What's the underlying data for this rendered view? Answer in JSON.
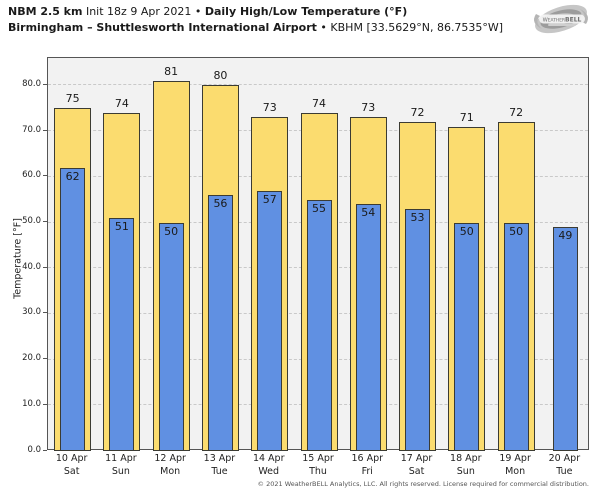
{
  "header": {
    "title_model": "NBM 2.5 km",
    "title_init": "Init 18z 9 Apr 2021",
    "title_sep": "•",
    "title_main": "Daily High/Low Temperature (°F)",
    "subtitle_station": "Birmingham – Shuttlesworth International Airport",
    "subtitle_sep": "•",
    "subtitle_meta": "KBHM [33.5629°N, 86.7535°W]",
    "logo_text_left": "Weather",
    "logo_text_right": "BELL"
  },
  "chart_data": {
    "type": "bar",
    "title": "NBM 2.5 km Init 18z 9 Apr 2021 • Daily High/Low Temperature (°F)",
    "subtitle": "Birmingham – Shuttlesworth International Airport • KBHM [33.5629°N, 86.7535°W]",
    "xlabel": "",
    "ylabel": "Temperature [°F]",
    "ylim": [
      0,
      86
    ],
    "yticks": [
      0,
      10,
      20,
      30,
      40,
      50,
      60,
      70,
      80
    ],
    "ytick_labels": [
      "0.0",
      "10.0",
      "20.0",
      "30.0",
      "40.0",
      "50.0",
      "60.0",
      "70.0",
      "80.0"
    ],
    "grid": "horizontal-dashed",
    "legend_position": "none",
    "categories": [
      {
        "date": "10 Apr",
        "day": "Sat"
      },
      {
        "date": "11 Apr",
        "day": "Sun"
      },
      {
        "date": "12 Apr",
        "day": "Mon"
      },
      {
        "date": "13 Apr",
        "day": "Tue"
      },
      {
        "date": "14 Apr",
        "day": "Wed"
      },
      {
        "date": "15 Apr",
        "day": "Thu"
      },
      {
        "date": "16 Apr",
        "day": "Fri"
      },
      {
        "date": "17 Apr",
        "day": "Sat"
      },
      {
        "date": "18 Apr",
        "day": "Sun"
      },
      {
        "date": "19 Apr",
        "day": "Mon"
      },
      {
        "date": "20 Apr",
        "day": "Tue"
      }
    ],
    "series": [
      {
        "name": "Daily High",
        "color": "#fbdc6f",
        "values": [
          75,
          74,
          81,
          80,
          73,
          74,
          73,
          72,
          71,
          72,
          null
        ]
      },
      {
        "name": "Daily Low",
        "color": "#6090e2",
        "values": [
          62,
          51,
          50,
          56,
          57,
          55,
          54,
          53,
          50,
          50,
          49
        ]
      }
    ],
    "colors": {
      "plot_background": "#f2f2f2",
      "figure_background": "#ffffff",
      "bar_border": "#3b3b33",
      "gridline": "#c9c9c9",
      "axis_border": "#555555"
    }
  },
  "footer": {
    "copyright": "© 2021 WeatherBELL Analytics, LLC. All rights reserved. License required for commercial distribution."
  }
}
